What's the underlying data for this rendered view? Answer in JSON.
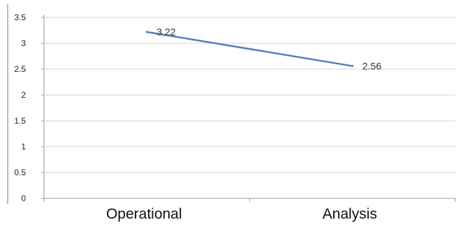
{
  "chart_data": {
    "type": "line",
    "categories": [
      "Operational",
      "Analysis"
    ],
    "series": [
      {
        "values": [
          3.22,
          2.56
        ],
        "data_labels": [
          "3.22",
          "2.56"
        ],
        "color": "#4f81bd"
      }
    ],
    "title": "",
    "xlabel": "",
    "ylabel": "",
    "ylim": [
      0,
      3.5
    ],
    "y_ticks": [
      0,
      0.5,
      1,
      1.5,
      2,
      2.5,
      3,
      3.5
    ],
    "y_tick_labels": [
      "0",
      "0.5",
      "1",
      "1.5",
      "2",
      "2.5",
      "3",
      "3.5"
    ],
    "grid": true,
    "legend": "none"
  },
  "colors": {
    "line": "#4f81bd",
    "grid": "#d6d6d6",
    "axis": "#9a9a9a"
  }
}
